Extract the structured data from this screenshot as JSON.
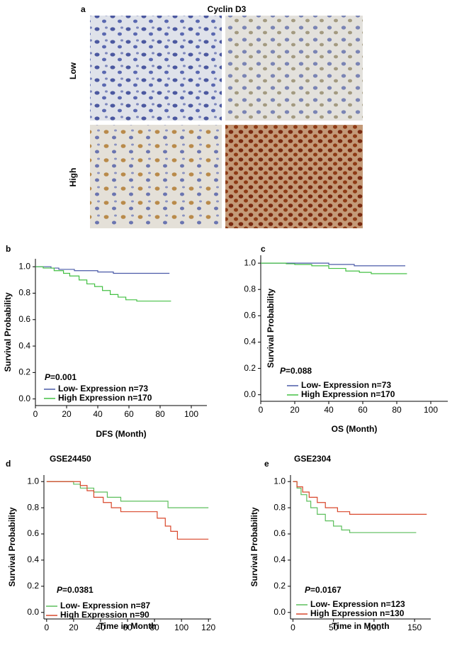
{
  "figure": {
    "panel": "a",
    "title": "Cyclin D3",
    "rows": [
      "Low",
      "High"
    ]
  },
  "chart_data": [
    {
      "type": "line",
      "step": true,
      "panel": "b",
      "xlabel": "DFS (Month)",
      "ylabel": "Survival Probability",
      "annotation": [
        "P",
        "=0.001"
      ],
      "legend": "lower left",
      "xlim": [
        0,
        110
      ],
      "ylim": [
        -0.05,
        1.06
      ],
      "xticks": [
        0,
        20,
        40,
        60,
        80,
        100
      ],
      "yticks": [
        {
          "value": 0,
          "label": "0.0"
        },
        {
          "value": 0.2,
          "label": "0.2"
        },
        {
          "value": 0.4,
          "label": "0.4"
        },
        {
          "value": 0.6,
          "label": "0.6"
        },
        {
          "value": 0.8,
          "label": "0.8"
        },
        {
          "value": 1,
          "label": "1.0"
        }
      ],
      "series": [
        {
          "name": "Low- Expression n=73",
          "color": "#4a5aa8",
          "x": [
            0,
            10,
            15,
            25,
            40,
            50,
            86
          ],
          "values": [
            1,
            0.99,
            0.98,
            0.97,
            0.96,
            0.95,
            0.95
          ]
        },
        {
          "name": "High Expression n=170",
          "color": "#44c044",
          "x": [
            0,
            5,
            12,
            18,
            22,
            28,
            33,
            38,
            43,
            48,
            53,
            58,
            65,
            87
          ],
          "values": [
            1,
            0.99,
            0.97,
            0.95,
            0.93,
            0.9,
            0.87,
            0.85,
            0.82,
            0.79,
            0.77,
            0.75,
            0.74,
            0.74
          ]
        }
      ]
    },
    {
      "type": "line",
      "step": true,
      "panel": "c",
      "xlabel": "OS (Month)",
      "ylabel": "Survival Probability",
      "annotation": [
        "P",
        "=0.088"
      ],
      "legend": "lower left",
      "xlim": [
        0,
        110
      ],
      "ylim": [
        -0.05,
        1.06
      ],
      "xticks": [
        0,
        20,
        40,
        60,
        80,
        100
      ],
      "yticks": [
        {
          "value": 0,
          "label": "0.0"
        },
        {
          "value": 0.2,
          "label": "0.2"
        },
        {
          "value": 0.4,
          "label": "0.4"
        },
        {
          "value": 0.6,
          "label": "0.6"
        },
        {
          "value": 0.8,
          "label": "0.8"
        },
        {
          "value": 1,
          "label": "1.0"
        }
      ],
      "series": [
        {
          "name": "Low- Expression n=73",
          "color": "#4a5aa8",
          "x": [
            0,
            40,
            55,
            85
          ],
          "values": [
            1,
            0.99,
            0.98,
            0.98
          ]
        },
        {
          "name": "High Expression n=170",
          "color": "#44c044",
          "x": [
            0,
            15,
            20,
            30,
            40,
            50,
            58,
            65,
            86
          ],
          "values": [
            1,
            0.995,
            0.99,
            0.98,
            0.96,
            0.94,
            0.93,
            0.92,
            0.92
          ]
        }
      ]
    },
    {
      "type": "line",
      "step": true,
      "panel": "d",
      "title": "GSE24450",
      "xlabel": "Time in Month",
      "ylabel": "Survival Probability",
      "annotation": [
        "P",
        "=0.0381"
      ],
      "legend": "lower left",
      "xlim": [
        -2,
        122
      ],
      "ylim": [
        -0.05,
        1.05
      ],
      "xticks": [
        0,
        20,
        40,
        60,
        80,
        100,
        120
      ],
      "yticks": [
        {
          "value": 0,
          "label": "0.0"
        },
        {
          "value": 0.2,
          "label": "0.2"
        },
        {
          "value": 0.4,
          "label": "0.4"
        },
        {
          "value": 0.6,
          "label": "0.6"
        },
        {
          "value": 0.8,
          "label": "0.8"
        },
        {
          "value": 1,
          "label": "1.0"
        }
      ],
      "series": [
        {
          "name": "Low- Expression n=87",
          "color": "#5cbf5c",
          "x": [
            0,
            20,
            25,
            35,
            45,
            55,
            65,
            90,
            120
          ],
          "values": [
            1,
            0.98,
            0.95,
            0.92,
            0.88,
            0.85,
            0.85,
            0.8,
            0.8
          ]
        },
        {
          "name": "High Expression n=90",
          "color": "#d9472b",
          "x": [
            0,
            25,
            30,
            35,
            42,
            48,
            55,
            60,
            82,
            88,
            92,
            97,
            120
          ],
          "values": [
            1,
            0.97,
            0.93,
            0.88,
            0.84,
            0.8,
            0.77,
            0.77,
            0.72,
            0.66,
            0.62,
            0.56,
            0.56
          ]
        }
      ]
    },
    {
      "type": "line",
      "step": true,
      "panel": "e",
      "title": "GSE2304",
      "xlabel": "Time in Month",
      "ylabel": "Survival Probability",
      "annotation": [
        "P",
        "=0.0167"
      ],
      "legend": "lower left",
      "xlim": [
        -3,
        170
      ],
      "ylim": [
        -0.05,
        1.05
      ],
      "xticks": [
        0,
        50,
        100,
        150
      ],
      "yticks": [
        {
          "value": 0,
          "label": "0.0"
        },
        {
          "value": 0.2,
          "label": "0.2"
        },
        {
          "value": 0.4,
          "label": "0.4"
        },
        {
          "value": 0.6,
          "label": "0.6"
        },
        {
          "value": 0.8,
          "label": "0.8"
        },
        {
          "value": 1,
          "label": "1.0"
        }
      ],
      "series": [
        {
          "name": "Low- Expression n=123",
          "color": "#5cbf5c",
          "x": [
            0,
            5,
            10,
            17,
            22,
            30,
            40,
            50,
            60,
            70,
            152
          ],
          "values": [
            1,
            0.95,
            0.9,
            0.85,
            0.8,
            0.75,
            0.7,
            0.66,
            0.63,
            0.61,
            0.61
          ]
        },
        {
          "name": "High Expression n=130",
          "color": "#d9472b",
          "x": [
            0,
            5,
            12,
            20,
            30,
            40,
            55,
            70,
            165
          ],
          "values": [
            1,
            0.96,
            0.92,
            0.88,
            0.84,
            0.8,
            0.77,
            0.75,
            0.75
          ]
        }
      ]
    }
  ]
}
